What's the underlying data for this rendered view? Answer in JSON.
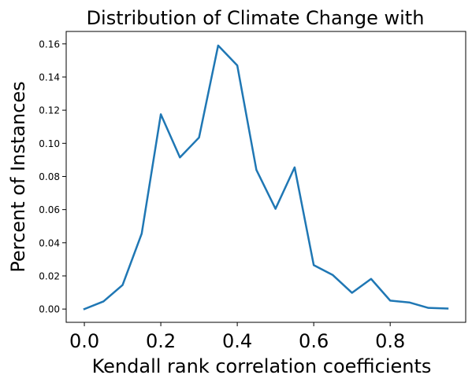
{
  "chart_data": {
    "type": "line",
    "title": "Distribution of Climate Change with",
    "xlabel": "Kendall rank correlation coefficients",
    "ylabel": "Percent of Instances",
    "xlim": [
      -0.0475,
      0.9975
    ],
    "ylim": [
      -0.008,
      0.1675
    ],
    "xticks": [
      0.0,
      0.2,
      0.4,
      0.6,
      0.8
    ],
    "xtick_labels": [
      "0.0",
      "0.2",
      "0.4",
      "0.6",
      "0.8"
    ],
    "yticks": [
      0.0,
      0.02,
      0.04,
      0.06,
      0.08,
      0.1,
      0.12,
      0.14,
      0.16
    ],
    "ytick_labels": [
      "0.00",
      "0.02",
      "0.04",
      "0.06",
      "0.08",
      "0.10",
      "0.12",
      "0.14",
      "0.16"
    ],
    "grid": false,
    "series": [
      {
        "color": "#1f77b4",
        "x": [
          0.0,
          0.05,
          0.1,
          0.15,
          0.2,
          0.25,
          0.3,
          0.35,
          0.4,
          0.45,
          0.5,
          0.55,
          0.6,
          0.65,
          0.7,
          0.75,
          0.8,
          0.85,
          0.9,
          0.95
        ],
        "y": [
          0.0,
          0.0046,
          0.0145,
          0.0455,
          0.1175,
          0.0915,
          0.1035,
          0.159,
          0.147,
          0.084,
          0.0605,
          0.0855,
          0.0265,
          0.0205,
          0.0098,
          0.0182,
          0.0051,
          0.004,
          0.0007,
          0.0003
        ]
      }
    ]
  }
}
